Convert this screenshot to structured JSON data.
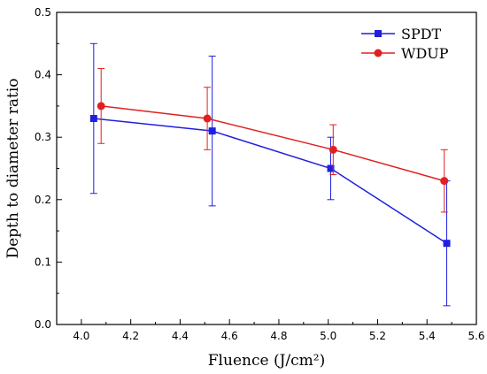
{
  "chart_data": {
    "type": "line",
    "xlabel": "Fluence (J/cm²)",
    "ylabel": "Depth to diameter ratio",
    "xlim": [
      3.9,
      5.6
    ],
    "ylim": [
      0.0,
      0.5
    ],
    "xticks": [
      "4.0",
      "4.2",
      "4.4",
      "4.6",
      "4.8",
      "5.0",
      "5.2",
      "5.4",
      "5.6"
    ],
    "yticks": [
      "0.0",
      "0.1",
      "0.2",
      "0.3",
      "0.4",
      "0.5"
    ],
    "grid": false,
    "legend_position": "top-right",
    "series": [
      {
        "name": "SPDT",
        "color": "#1f1fe0",
        "marker": "square",
        "x": [
          4.05,
          4.53,
          5.01,
          5.48
        ],
        "y": [
          0.33,
          0.31,
          0.25,
          0.13
        ],
        "err_low": [
          0.21,
          0.19,
          0.2,
          0.03
        ],
        "err_high": [
          0.45,
          0.43,
          0.3,
          0.23
        ]
      },
      {
        "name": "WDUP",
        "color": "#e02020",
        "marker": "circle",
        "x": [
          4.08,
          4.51,
          5.02,
          5.47
        ],
        "y": [
          0.35,
          0.33,
          0.28,
          0.23
        ],
        "err_low": [
          0.29,
          0.28,
          0.24,
          0.18
        ],
        "err_high": [
          0.41,
          0.38,
          0.32,
          0.28
        ]
      }
    ]
  }
}
